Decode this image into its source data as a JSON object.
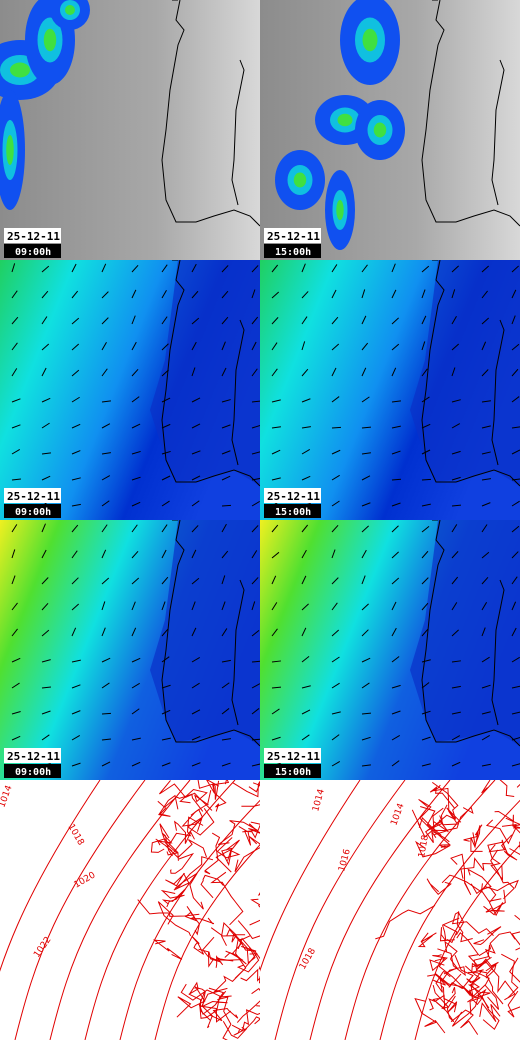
{
  "panels": [
    {
      "date": "25-12-11",
      "time": "09:00h"
    },
    {
      "date": "25-12-11",
      "time": "15:00h"
    },
    {
      "date": "25-12-11",
      "time": "09:00h"
    },
    {
      "date": "25-12-11",
      "time": "15:00h"
    },
    {
      "date": "25-12-11",
      "time": "09:00h"
    },
    {
      "date": "25-12-11",
      "time": "15:00h"
    }
  ],
  "isobar_labels": {
    "left": [
      "1014",
      "1018",
      "1020",
      "1022"
    ],
    "right": [
      "1014",
      "1014",
      "1016",
      "1018",
      "1018"
    ]
  }
}
